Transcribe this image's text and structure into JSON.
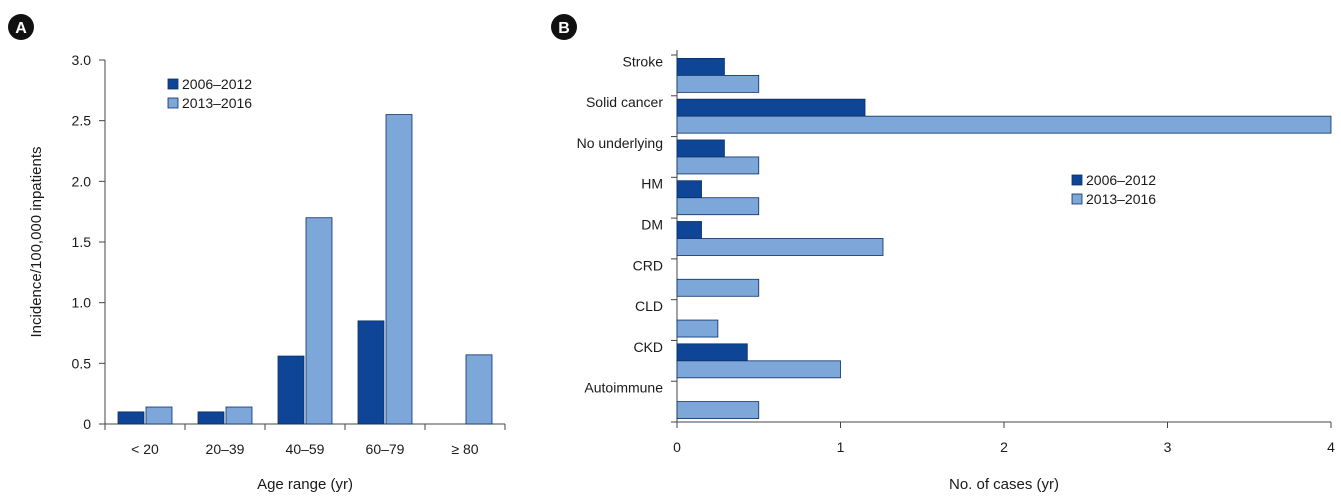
{
  "chart_data": [
    {
      "panel_label": "A",
      "type": "bar",
      "orientation": "vertical",
      "xlabel": "Age range (yr)",
      "ylabel": "Incidence/100,000 inpatients",
      "ylim": [
        0,
        3.0
      ],
      "yticks": [
        "0",
        "0.5",
        "1.0",
        "1.5",
        "2.0",
        "2.5",
        "3.0"
      ],
      "categories": [
        "< 20",
        "20–39",
        "40–59",
        "60–79",
        "≥ 80"
      ],
      "series": [
        {
          "name": "2006–2012",
          "color": "#0e4596",
          "values": [
            0.1,
            0.1,
            0.56,
            0.85,
            0
          ]
        },
        {
          "name": "2013–2016",
          "color": "#7da6d9",
          "values": [
            0.14,
            0.14,
            1.7,
            2.55,
            0.57
          ]
        }
      ],
      "legend": "top-left",
      "grid": false
    },
    {
      "panel_label": "B",
      "type": "bar",
      "orientation": "horizontal",
      "xlabel": "No. of cases (yr)",
      "ylabel": "",
      "xlim": [
        0,
        4
      ],
      "xticks": [
        "0",
        "1",
        "2",
        "3",
        "4"
      ],
      "categories": [
        "Stroke",
        "Solid cancer",
        "No underlying",
        "HM",
        "DM",
        "CRD",
        "CLD",
        "CKD",
        "Autoimmune"
      ],
      "series": [
        {
          "name": "2006–2012",
          "color": "#0e4596",
          "values": [
            0.29,
            1.15,
            0.29,
            0.15,
            0.15,
            0,
            0,
            0.43,
            0
          ]
        },
        {
          "name": "2013–2016",
          "color": "#7da6d9",
          "values": [
            0.5,
            4.0,
            0.5,
            0.5,
            1.26,
            0.5,
            0.25,
            1.0,
            0.5
          ]
        }
      ],
      "legend": "right",
      "grid": false
    }
  ]
}
